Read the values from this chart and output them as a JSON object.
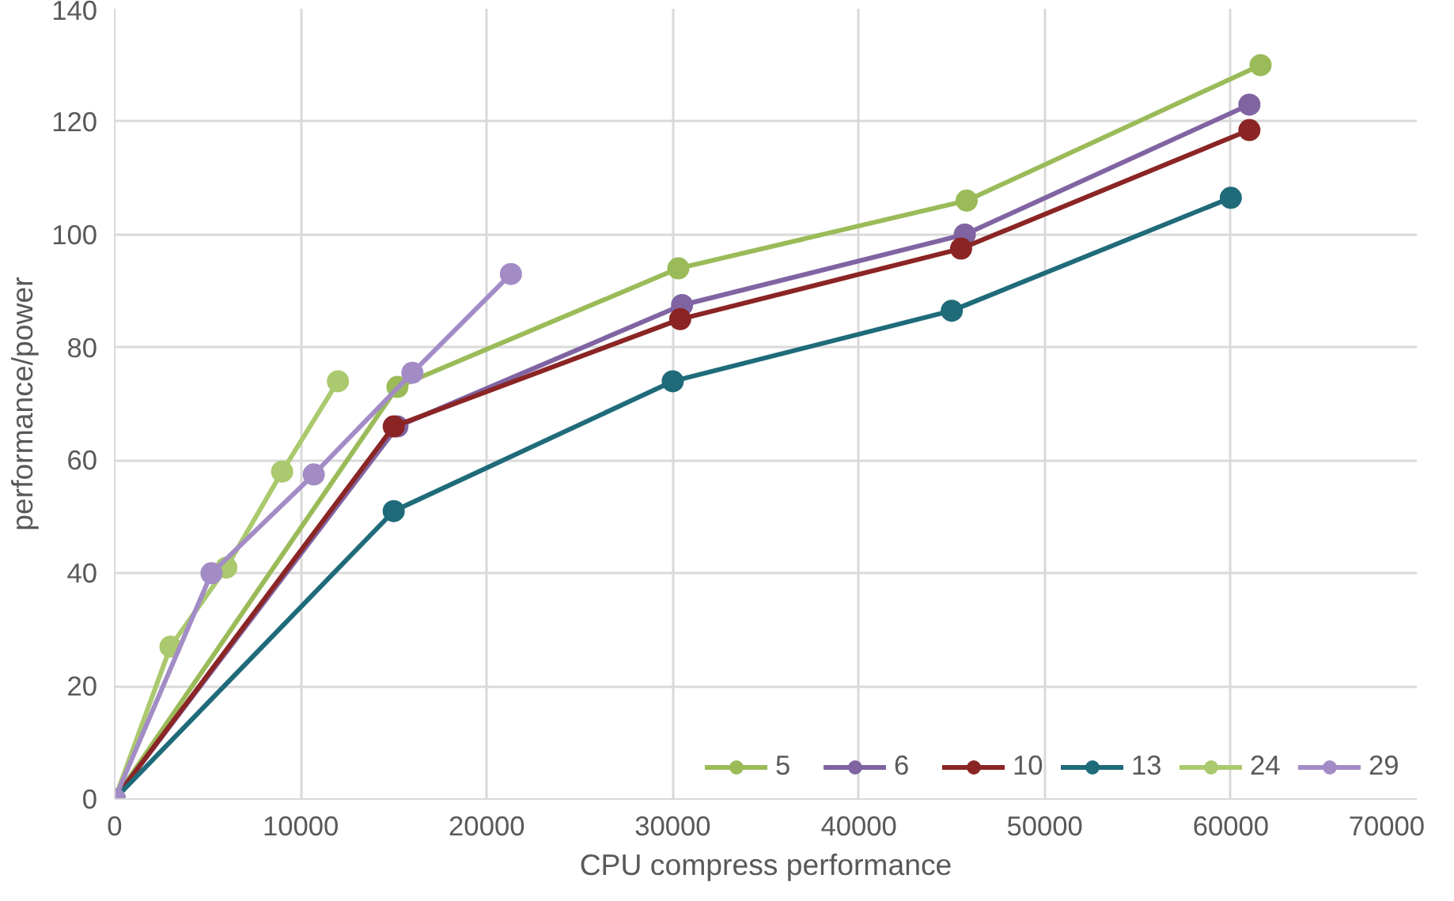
{
  "chart_data": {
    "type": "line",
    "xlabel": "CPU compress performance",
    "ylabel": "performance/power",
    "xlim": [
      0,
      70000
    ],
    "ylim": [
      0,
      140
    ],
    "xticks": [
      0,
      10000,
      20000,
      30000,
      40000,
      50000,
      60000,
      70000
    ],
    "yticks": [
      0,
      20,
      40,
      60,
      80,
      100,
      120,
      140
    ],
    "grid": true,
    "legend": "bottom right",
    "marker": "circle",
    "line_style": "solid",
    "series": [
      {
        "name": "5",
        "color": "#9bbb59",
        "x": [
          0,
          15200,
          30300,
          45800,
          61600
        ],
        "values": [
          0,
          73,
          94,
          106,
          130
        ]
      },
      {
        "name": "6",
        "color": "#8064a2",
        "x": [
          0,
          15200,
          30500,
          45700,
          61000
        ],
        "values": [
          0,
          66,
          87.5,
          100,
          123
        ]
      },
      {
        "name": "10",
        "color": "#8b2525",
        "x": [
          0,
          15000,
          30400,
          45500,
          61000
        ],
        "values": [
          0,
          66,
          85,
          97.5,
          118.5
        ]
      },
      {
        "name": "13",
        "color": "#1f6b7a",
        "x": [
          0,
          15000,
          30000,
          45000,
          60000
        ],
        "values": [
          0,
          51,
          74,
          86.5,
          106.5
        ]
      },
      {
        "name": "24",
        "color": "#abc96e",
        "x": [
          0,
          3000,
          6000,
          9000,
          12000
        ],
        "values": [
          0,
          27,
          41,
          58,
          74
        ]
      },
      {
        "name": "29",
        "color": "#a38cc6",
        "x": [
          0,
          5200,
          10700,
          16000,
          21300
        ],
        "values": [
          0,
          40,
          57.5,
          75.5,
          93
        ]
      }
    ]
  }
}
